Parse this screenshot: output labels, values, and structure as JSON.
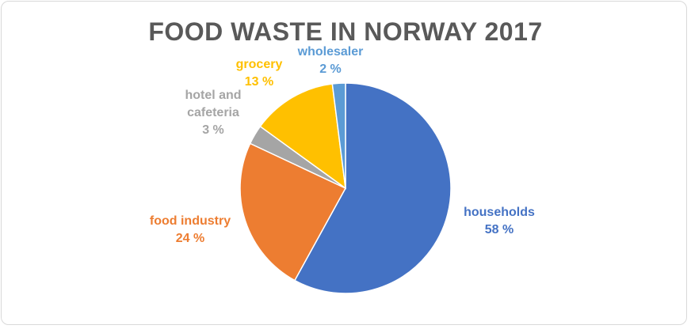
{
  "chart_data": {
    "type": "pie",
    "title": "FOOD WASTE IN NORWAY 2017",
    "categories": [
      "households",
      "food industry",
      "hotel and cafeteria",
      "grocery",
      "wholesaler"
    ],
    "values": [
      58,
      24,
      3,
      13,
      2
    ],
    "value_labels": [
      "58 %",
      "24 %",
      "3 %",
      "13 %",
      "2 %"
    ],
    "colors": [
      "#4472C4",
      "#ED7D31",
      "#A5A5A5",
      "#FFC000",
      "#5B9BD5"
    ],
    "legend": "none"
  },
  "labels": {
    "households": {
      "name": "households",
      "value": "58 %"
    },
    "food_industry": {
      "name": "food industry",
      "value": "24 %"
    },
    "hotel": {
      "name_line1": "hotel and",
      "name_line2": "cafeteria",
      "value": "3 %"
    },
    "grocery": {
      "name": "grocery",
      "value": "13 %"
    },
    "wholesaler": {
      "name": "wholesaler",
      "value": "2 %"
    }
  }
}
